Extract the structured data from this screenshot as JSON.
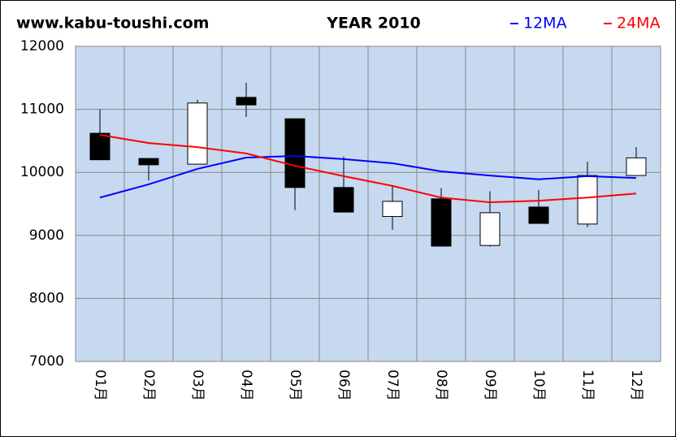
{
  "chart_data": {
    "type": "candlestick",
    "site": "www.kabu-toushi.com",
    "title": "YEAR 2010",
    "categories": [
      "01月",
      "02月",
      "03月",
      "04月",
      "05月",
      "06月",
      "07月",
      "08月",
      "09月",
      "10月",
      "11月",
      "12月"
    ],
    "open": [
      10620,
      10220,
      10130,
      11190,
      10850,
      9760,
      9300,
      9580,
      8840,
      9450,
      9180,
      9950
    ],
    "high": [
      11000,
      10220,
      11150,
      11420,
      10850,
      10250,
      9800,
      9750,
      9700,
      9720,
      10170,
      10400
    ],
    "low": [
      10200,
      9870,
      10130,
      10880,
      9400,
      9360,
      9090,
      8830,
      8820,
      9190,
      9130,
      9950
    ],
    "close": [
      10200,
      10120,
      11100,
      11070,
      9760,
      9370,
      9540,
      8830,
      9360,
      9190,
      9950,
      10230
    ],
    "up_color": "#ffffff",
    "down_color": "#000000",
    "series": [
      {
        "name": "12MA",
        "color": "#0000ff",
        "values": [
          9600,
          9810,
          10055,
          10235,
          10260,
          10210,
          10145,
          10015,
          9950,
          9890,
          9940,
          9910
        ]
      },
      {
        "name": "24MA",
        "color": "#ff0000",
        "values": [
          10595,
          10465,
          10400,
          10300,
          10105,
          9940,
          9785,
          9600,
          9525,
          9550,
          9600,
          9665
        ]
      }
    ],
    "ylim": [
      7000,
      12000
    ],
    "yticks": [
      7000,
      8000,
      9000,
      10000,
      11000,
      12000
    ],
    "grid": true
  }
}
